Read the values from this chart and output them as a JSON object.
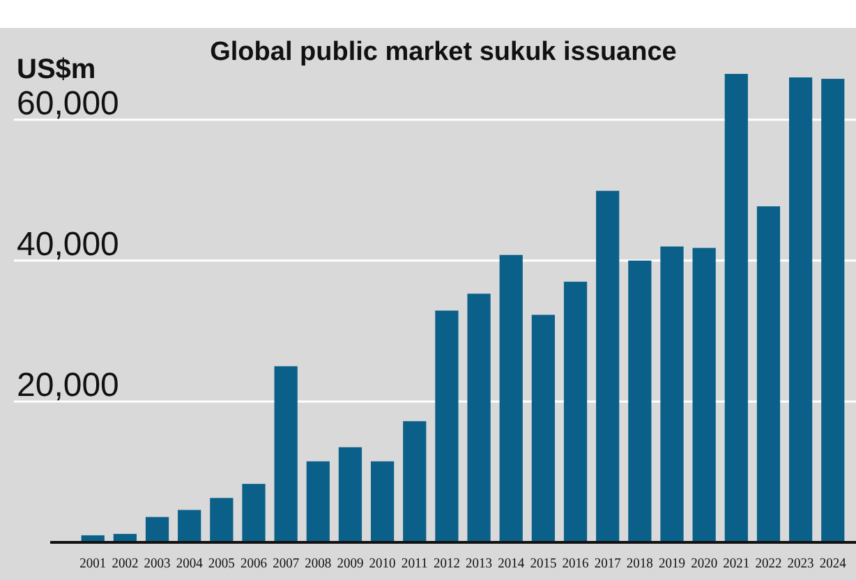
{
  "chart_data": {
    "type": "bar",
    "title": "Global public market sukuk issuance",
    "ylabel": "US$m",
    "categories": [
      "2001",
      "2002",
      "2003",
      "2004",
      "2005",
      "2006",
      "2007",
      "2008",
      "2009",
      "2010",
      "2011",
      "2012",
      "2013",
      "2014",
      "2015",
      "2016",
      "2017",
      "2018",
      "2019",
      "2020",
      "2021",
      "2022",
      "2023",
      "2024"
    ],
    "values": [
      1000,
      1200,
      3600,
      4600,
      6300,
      8300,
      25000,
      11500,
      13500,
      11500,
      17200,
      32900,
      35300,
      40800,
      32300,
      37000,
      49900,
      40000,
      42000,
      41800,
      66500,
      47700,
      66000,
      65800
    ],
    "color": "#0b6089",
    "ylim": [
      0,
      66500
    ],
    "yticks": [
      {
        "value": 0,
        "label": null
      },
      {
        "value": 20000,
        "label": "20,000"
      },
      {
        "value": 40000,
        "label": "40,000"
      },
      {
        "value": 60000,
        "label": "60,000"
      }
    ],
    "grid": "y"
  }
}
